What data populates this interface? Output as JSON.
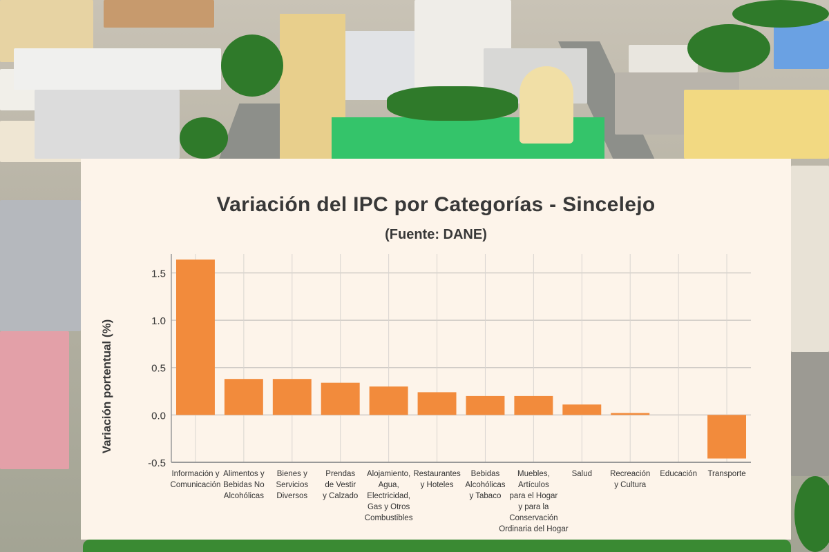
{
  "chart_data": {
    "type": "bar",
    "title": "Variación del IPC por Categorías - Sincelejo",
    "subtitle": "(Fuente: DANE)",
    "xlabel": "",
    "ylabel": "Variación portentual (%)",
    "ylim": [
      -0.5,
      1.7
    ],
    "yticks": [
      "1.5",
      "1.0",
      "0.5",
      "0.0",
      "-0.5"
    ],
    "ytick_values": [
      1.5,
      1.0,
      0.5,
      0.0,
      -0.5
    ],
    "grid": true,
    "bar_color": "#f28b3c",
    "categories": [
      [
        "Información y",
        "Comunicación"
      ],
      [
        "Alimentos y",
        "Bebidas No",
        "Alcohólicas"
      ],
      [
        "Bienes y",
        "Servicios",
        "Diversos"
      ],
      [
        "Prendas",
        "de Vestir",
        "y Calzado"
      ],
      [
        "Alojamiento,",
        "Agua,",
        "Electricidad,",
        "Gas y Otros",
        "Combustibles"
      ],
      [
        "Restaurantes",
        "y Hoteles"
      ],
      [
        "Bebidas",
        "Alcohólicas",
        "y Tabaco"
      ],
      [
        "Muebles,",
        "Artículos",
        "para el Hogar",
        "y para la",
        "Conservación",
        "Ordinaria del Hogar"
      ],
      [
        "Salud"
      ],
      [
        "Recreación",
        "y Cultura"
      ],
      [
        "Educación"
      ],
      [
        "Transporte"
      ]
    ],
    "values": [
      1.64,
      0.38,
      0.38,
      0.34,
      0.3,
      0.24,
      0.2,
      0.2,
      0.11,
      0.02,
      0.0,
      -0.46
    ]
  }
}
